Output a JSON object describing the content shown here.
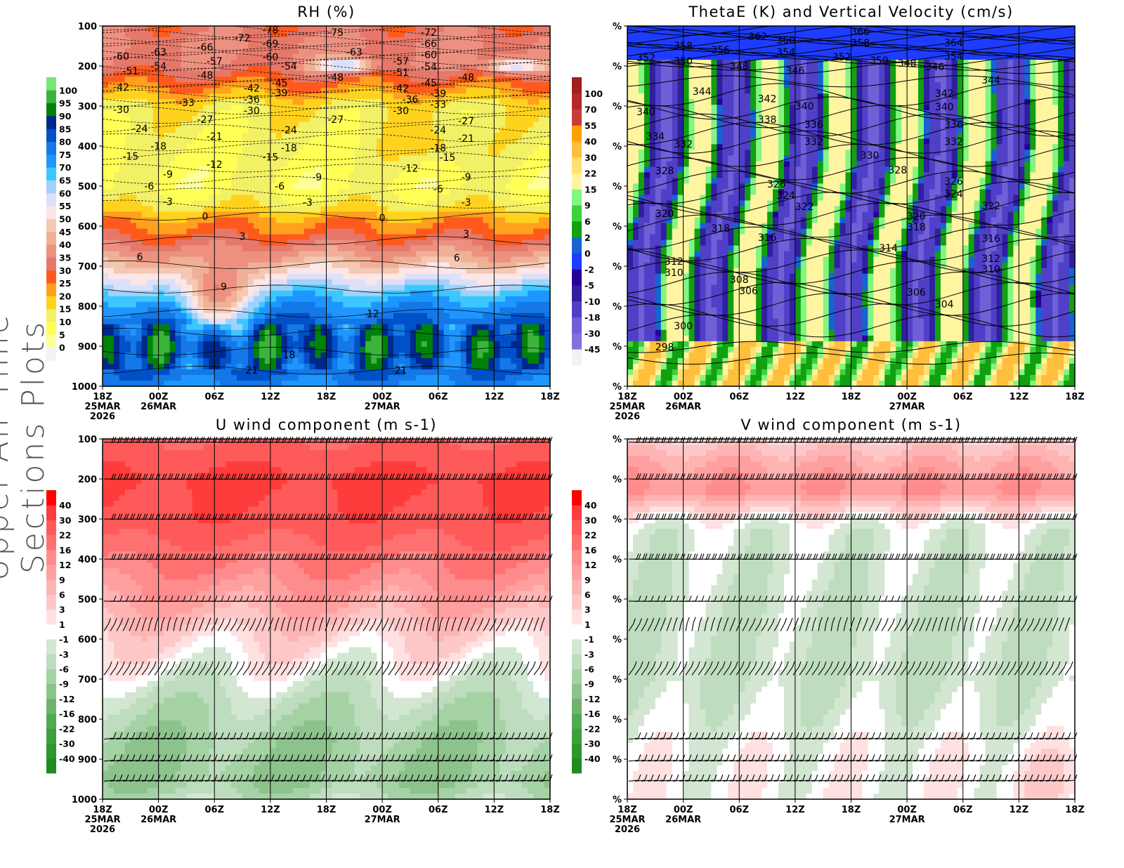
{
  "figure_label": "Upper-Air Time Sections Plots",
  "chart_data": [
    {
      "id": "rh",
      "type": "contour",
      "title": "RH (%)",
      "ylim": [
        1000,
        100
      ],
      "yticks": [
        "100",
        "200",
        "300",
        "400",
        "500",
        "600",
        "700",
        "800",
        "900",
        "1000"
      ],
      "xticks": [
        {
          "hour": "18Z",
          "date": "25MAR",
          "year": "2026"
        },
        {
          "hour": "00Z",
          "date": "26MAR"
        },
        {
          "hour": "06Z"
        },
        {
          "hour": "12Z"
        },
        {
          "hour": "18Z"
        },
        {
          "hour": "00Z",
          "date": "27MAR"
        },
        {
          "hour": "06Z"
        },
        {
          "hour": "12Z"
        },
        {
          "hour": "18Z"
        }
      ],
      "colorbar": {
        "labels": [
          "0",
          "5",
          "10",
          "15",
          "20",
          "25",
          "30",
          "35",
          "40",
          "45",
          "50",
          "55",
          "60",
          "65",
          "70",
          "75",
          "80",
          "85",
          "90",
          "95",
          "100"
        ],
        "colors": [
          "#f2f2f2",
          "#ffff99",
          "#ffff55",
          "#f2f064",
          "#ffd21e",
          "#ffa01e",
          "#ff5a1e",
          "#e6786a",
          "#ed9080",
          "#f0b096",
          "#f5c8b4",
          "#fde6e6",
          "#dde0fa",
          "#a0d2fa",
          "#3cc8ff",
          "#1e96ff",
          "#1478e6",
          "#0050c8",
          "#00288c",
          "#00820a",
          "#3cb43c",
          "#78e678"
        ]
      },
      "contour_labels": [
        {
          "time": "25/20Z",
          "p": 175,
          "v": "-60"
        },
        {
          "time": "25/21Z",
          "p": 212,
          "v": "-51"
        },
        {
          "time": "26/00Z",
          "p": 165,
          "v": "-63"
        },
        {
          "time": "26/00Z",
          "p": 200,
          "v": "-54"
        },
        {
          "time": "26/05Z",
          "p": 153,
          "v": "-66"
        },
        {
          "time": "26/09Z",
          "p": 130,
          "v": "-72"
        },
        {
          "time": "26/12Z",
          "p": 110,
          "v": "-78"
        },
        {
          "time": "26/12Z",
          "p": 144,
          "v": "-69"
        },
        {
          "time": "26/12Z",
          "p": 177,
          "v": "-60"
        },
        {
          "time": "26/06Z",
          "p": 188,
          "v": "-57"
        },
        {
          "time": "26/05Z",
          "p": 223,
          "v": "-48"
        },
        {
          "time": "26/14Z",
          "p": 200,
          "v": "-54"
        },
        {
          "time": "26/13Z",
          "p": 242,
          "v": "-45"
        },
        {
          "time": "26/10Z",
          "p": 255,
          "v": "-42"
        },
        {
          "time": "26/13Z",
          "p": 267,
          "v": "-39"
        },
        {
          "time": "26/10Z",
          "p": 283,
          "v": "-36"
        },
        {
          "time": "26/10Z",
          "p": 311,
          "v": "-30"
        },
        {
          "time": "25/20Z",
          "p": 253,
          "v": "-42"
        },
        {
          "time": "25/20Z",
          "p": 309,
          "v": "-30"
        },
        {
          "time": "26/03Z",
          "p": 291,
          "v": "-33"
        },
        {
          "time": "26/05Z",
          "p": 333,
          "v": "-27"
        },
        {
          "time": "25/22Z",
          "p": 356,
          "v": "-24"
        },
        {
          "time": "26/06Z",
          "p": 375,
          "v": "-21"
        },
        {
          "time": "26/00Z",
          "p": 400,
          "v": "-18"
        },
        {
          "time": "25/21Z",
          "p": 425,
          "v": "-15"
        },
        {
          "time": "26/06Z",
          "p": 446,
          "v": "-12"
        },
        {
          "time": "26/01Z",
          "p": 470,
          "v": "-9"
        },
        {
          "time": "25/23Z",
          "p": 500,
          "v": "-6"
        },
        {
          "time": "26/01Z",
          "p": 539,
          "v": "-3"
        },
        {
          "time": "26/05Z",
          "p": 575,
          "v": "0"
        },
        {
          "time": "26/09Z",
          "p": 625,
          "v": "3"
        },
        {
          "time": "25/22Z",
          "p": 676,
          "v": "6"
        },
        {
          "time": "26/07Z",
          "p": 751,
          "v": "9"
        },
        {
          "time": "26/23Z",
          "p": 818,
          "v": "12"
        },
        {
          "time": "26/14Z",
          "p": 921,
          "v": "18"
        },
        {
          "time": "26/10Z",
          "p": 960,
          "v": "21"
        },
        {
          "time": "26/12Z",
          "p": 427,
          "v": "-15"
        },
        {
          "time": "26/14Z",
          "p": 360,
          "v": "-24"
        },
        {
          "time": "26/14Z",
          "p": 404,
          "v": "-18"
        },
        {
          "time": "26/13Z",
          "p": 500,
          "v": "-6"
        },
        {
          "time": "26/17Z",
          "p": 477,
          "v": "-9"
        },
        {
          "time": "26/16Z",
          "p": 540,
          "v": "-3"
        },
        {
          "time": "26/19Z",
          "p": 116,
          "v": "-75"
        },
        {
          "time": "26/21Z",
          "p": 165,
          "v": "-63"
        },
        {
          "time": "26/19Z",
          "p": 228,
          "v": "-48"
        },
        {
          "time": "26/19Z",
          "p": 333,
          "v": "-27"
        },
        {
          "time": "27/02Z",
          "p": 188,
          "v": "-57"
        },
        {
          "time": "27/02Z",
          "p": 216,
          "v": "-51"
        },
        {
          "time": "27/02Z",
          "p": 255,
          "v": "-42"
        },
        {
          "time": "27/02Z",
          "p": 311,
          "v": "-30"
        },
        {
          "time": "27/03Z",
          "p": 283,
          "v": "-36"
        },
        {
          "time": "27/05Z",
          "p": 116,
          "v": "-72"
        },
        {
          "time": "27/05Z",
          "p": 144,
          "v": "-66"
        },
        {
          "time": "27/05Z",
          "p": 172,
          "v": "-60"
        },
        {
          "time": "27/05Z",
          "p": 202,
          "v": "-54"
        },
        {
          "time": "27/05Z",
          "p": 242,
          "v": "-45"
        },
        {
          "time": "27/06Z",
          "p": 268,
          "v": "-39"
        },
        {
          "time": "27/06Z",
          "p": 296,
          "v": "-33"
        },
        {
          "time": "27/09Z",
          "p": 228,
          "v": "-48"
        },
        {
          "time": "27/09Z",
          "p": 337,
          "v": "-27"
        },
        {
          "time": "27/06Z",
          "p": 360,
          "v": "-24"
        },
        {
          "time": "27/09Z",
          "p": 381,
          "v": "-21"
        },
        {
          "time": "27/06Z",
          "p": 404,
          "v": "-18"
        },
        {
          "time": "27/07Z",
          "p": 428,
          "v": "-15"
        },
        {
          "time": "27/03Z",
          "p": 455,
          "v": "-12"
        },
        {
          "time": "27/09Z",
          "p": 477,
          "v": "-9"
        },
        {
          "time": "27/06Z",
          "p": 507,
          "v": "-6"
        },
        {
          "time": "27/09Z",
          "p": 540,
          "v": "-3"
        },
        {
          "time": "27/00Z",
          "p": 579,
          "v": "0"
        },
        {
          "time": "27/09Z",
          "p": 619,
          "v": "3"
        },
        {
          "time": "27/08Z",
          "p": 679,
          "v": "6"
        },
        {
          "time": "27/02Z",
          "p": 960,
          "v": "21"
        }
      ]
    },
    {
      "id": "thetae",
      "type": "contour",
      "title": "ThetaE (K) and Vertical Velocity (cm/s)",
      "ylim": [
        1000,
        100
      ],
      "yticks": [
        "%",
        "%",
        "%",
        "%",
        "%",
        "%",
        "%",
        "%",
        "%",
        "%"
      ],
      "xticks": [
        {
          "hour": "18Z",
          "date": "25MAR",
          "year": "2026"
        },
        {
          "hour": "00Z",
          "date": "26MAR"
        },
        {
          "hour": "06Z"
        },
        {
          "hour": "12Z"
        },
        {
          "hour": "18Z"
        },
        {
          "hour": "00Z",
          "date": "27MAR"
        },
        {
          "hour": "06Z"
        },
        {
          "hour": "12Z"
        },
        {
          "hour": "18Z"
        }
      ],
      "colorbar": {
        "labels": [
          "-45",
          "-30",
          "-18",
          "-10",
          "-5",
          "-2",
          "0",
          "2",
          "6",
          "9",
          "15",
          "22",
          "30",
          "40",
          "55",
          "70",
          "100"
        ],
        "colors": [
          "#f2f2f2",
          "#8070e0",
          "#7060d8",
          "#5040c8",
          "#3020a0",
          "#280098",
          "#1e3cff",
          "#1464d2",
          "#10a010",
          "#3cd23c",
          "#82f582",
          "#fff5a0",
          "#ffe070",
          "#ffbe3c",
          "#ffa000",
          "#c83c3c",
          "#b42828",
          "#a01e1e"
        ]
      },
      "contour_labels": [
        {
          "time": "25/20Z",
          "p": 179,
          "v": "352"
        },
        {
          "time": "26/00Z",
          "p": 149,
          "v": "358"
        },
        {
          "time": "26/04Z",
          "p": 160,
          "v": "356"
        },
        {
          "time": "26/08Z",
          "p": 126,
          "v": "362"
        },
        {
          "time": "26/11Z",
          "p": 135,
          "v": "360"
        },
        {
          "time": "26/11Z",
          "p": 165,
          "v": "354"
        },
        {
          "time": "26/19Z",
          "p": 114,
          "v": "366"
        },
        {
          "time": "26/19Z",
          "p": 142,
          "v": "358"
        },
        {
          "time": "27/05Z",
          "p": 142,
          "v": "364"
        },
        {
          "time": "27/05Z",
          "p": 175,
          "v": "354"
        },
        {
          "time": "26/00Z",
          "p": 188,
          "v": "350"
        },
        {
          "time": "26/06Z",
          "p": 200,
          "v": "348"
        },
        {
          "time": "26/12Z",
          "p": 211,
          "v": "346"
        },
        {
          "time": "26/17Z",
          "p": 177,
          "v": "352"
        },
        {
          "time": "26/21Z",
          "p": 186,
          "v": "350"
        },
        {
          "time": "27/00Z",
          "p": 193,
          "v": "348"
        },
        {
          "time": "27/03Z",
          "p": 202,
          "v": "346"
        },
        {
          "time": "26/02Z",
          "p": 263,
          "v": "344"
        },
        {
          "time": "27/09Z",
          "p": 235,
          "v": "344"
        },
        {
          "time": "26/09Z",
          "p": 282,
          "v": "342"
        },
        {
          "time": "27/04Z",
          "p": 268,
          "v": "342"
        },
        {
          "time": "25/20Z",
          "p": 314,
          "v": "340"
        },
        {
          "time": "26/13Z",
          "p": 300,
          "v": "340"
        },
        {
          "time": "27/04Z",
          "p": 302,
          "v": "340"
        },
        {
          "time": "26/09Z",
          "p": 333,
          "v": "338"
        },
        {
          "time": "26/14Z",
          "p": 346,
          "v": "336"
        },
        {
          "time": "27/05Z",
          "p": 346,
          "v": "336"
        },
        {
          "time": "25/21Z",
          "p": 375,
          "v": "334"
        },
        {
          "time": "26/00Z",
          "p": 395,
          "v": "332"
        },
        {
          "time": "26/14Z",
          "p": 389,
          "v": "332"
        },
        {
          "time": "27/05Z",
          "p": 389,
          "v": "332"
        },
        {
          "time": "26/20Z",
          "p": 423,
          "v": "330"
        },
        {
          "time": "25/22Z",
          "p": 461,
          "v": "328"
        },
        {
          "time": "26/23Z",
          "p": 460,
          "v": "328"
        },
        {
          "time": "26/10Z",
          "p": 495,
          "v": "326"
        },
        {
          "time": "27/05Z",
          "p": 488,
          "v": "326"
        },
        {
          "time": "26/11Z",
          "p": 523,
          "v": "324"
        },
        {
          "time": "27/05Z",
          "p": 519,
          "v": "324"
        },
        {
          "time": "26/13Z",
          "p": 551,
          "v": "322"
        },
        {
          "time": "27/09Z",
          "p": 549,
          "v": "322"
        },
        {
          "time": "25/22Z",
          "p": 568,
          "v": "320"
        },
        {
          "time": "27/01Z",
          "p": 575,
          "v": "320"
        },
        {
          "time": "26/04Z",
          "p": 605,
          "v": "318"
        },
        {
          "time": "27/01Z",
          "p": 602,
          "v": "318"
        },
        {
          "time": "26/09Z",
          "p": 628,
          "v": "316"
        },
        {
          "time": "27/09Z",
          "p": 631,
          "v": "316"
        },
        {
          "time": "26/22Z",
          "p": 654,
          "v": "314"
        },
        {
          "time": "25/23Z",
          "p": 688,
          "v": "312"
        },
        {
          "time": "27/09Z",
          "p": 681,
          "v": "312"
        },
        {
          "time": "25/23Z",
          "p": 716,
          "v": "310"
        },
        {
          "time": "27/09Z",
          "p": 707,
          "v": "310"
        },
        {
          "time": "26/06Z",
          "p": 733,
          "v": "308"
        },
        {
          "time": "26/07Z",
          "p": 761,
          "v": "306"
        },
        {
          "time": "27/01Z",
          "p": 765,
          "v": "306"
        },
        {
          "time": "27/04Z",
          "p": 795,
          "v": "304"
        },
        {
          "time": "26/00Z",
          "p": 849,
          "v": "300"
        },
        {
          "time": "25/22Z",
          "p": 902,
          "v": "298"
        }
      ]
    },
    {
      "id": "u",
      "type": "contour",
      "title": "U wind component (m s-1)",
      "ylim": [
        1000,
        100
      ],
      "yticks": [
        "100",
        "200",
        "300",
        "400",
        "500",
        "600",
        "700",
        "800",
        "900",
        "1000"
      ],
      "xticks": [
        {
          "hour": "18Z",
          "date": "25MAR",
          "year": "2026"
        },
        {
          "hour": "00Z",
          "date": "26MAR"
        },
        {
          "hour": "06Z"
        },
        {
          "hour": "12Z"
        },
        {
          "hour": "18Z"
        },
        {
          "hour": "00Z",
          "date": "27MAR"
        },
        {
          "hour": "06Z"
        },
        {
          "hour": "12Z"
        },
        {
          "hour": "18Z"
        }
      ],
      "colorbar": {
        "labels": [
          "-40",
          "-30",
          "-22",
          "-16",
          "-12",
          "-9",
          "-6",
          "-3",
          "-1",
          "1",
          "3",
          "6",
          "9",
          "12",
          "16",
          "22",
          "30",
          "40"
        ],
        "colors": [
          "#1e8c1e",
          "#2d962d",
          "#3ca03c",
          "#50aa50",
          "#6eb46e",
          "#8cc38c",
          "#a5d2a5",
          "#bedcbe",
          "#d2e6d2",
          "#ffffff",
          "#ffe1e1",
          "#ffc8c8",
          "#ffb4b4",
          "#ffa0a0",
          "#ff8c8c",
          "#ff7070",
          "#ff5a5a",
          "#ff3c3c",
          "#ff0000"
        ]
      },
      "contour_labels": []
    },
    {
      "id": "v",
      "type": "contour",
      "title": "V wind component (m s-1)",
      "ylim": [
        1000,
        100
      ],
      "yticks": [
        "%",
        "%",
        "%",
        "%",
        "%",
        "%",
        "%",
        "%",
        "%",
        "%"
      ],
      "xticks": [
        {
          "hour": "18Z",
          "date": "25MAR",
          "year": "2026"
        },
        {
          "hour": "00Z",
          "date": "26MAR"
        },
        {
          "hour": "06Z"
        },
        {
          "hour": "12Z"
        },
        {
          "hour": "18Z"
        },
        {
          "hour": "00Z",
          "date": "27MAR"
        },
        {
          "hour": "06Z"
        },
        {
          "hour": "12Z"
        },
        {
          "hour": "18Z"
        }
      ],
      "colorbar": {
        "labels": [
          "-40",
          "-30",
          "-22",
          "-16",
          "-12",
          "-9",
          "-6",
          "-3",
          "-1",
          "1",
          "3",
          "6",
          "9",
          "12",
          "16",
          "22",
          "30",
          "40"
        ],
        "colors": [
          "#1e8c1e",
          "#2d962d",
          "#3ca03c",
          "#50aa50",
          "#6eb46e",
          "#8cc38c",
          "#a5d2a5",
          "#bedcbe",
          "#d2e6d2",
          "#ffffff",
          "#ffe1e1",
          "#ffc8c8",
          "#ffb4b4",
          "#ffa0a0",
          "#ff8c8c",
          "#ff7070",
          "#ff5a5a",
          "#ff3c3c",
          "#ff0000"
        ]
      },
      "contour_labels": []
    }
  ]
}
